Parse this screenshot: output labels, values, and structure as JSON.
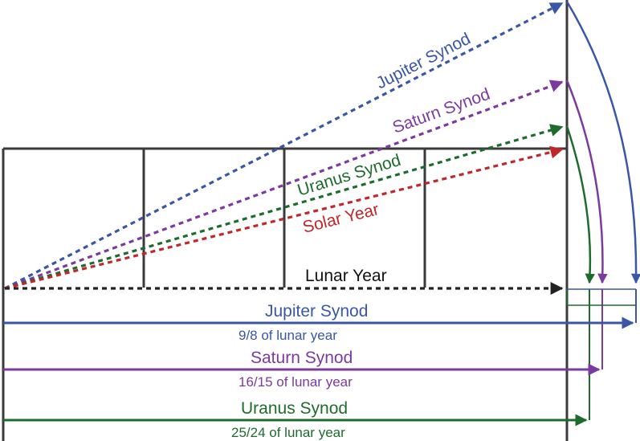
{
  "colors": {
    "frame": "#3a3a3a",
    "jupiter": "#3a56a6",
    "saturn": "#7b3a9e",
    "uranus": "#1e6b2e",
    "solar": "#c0282a",
    "lunar": "#222222"
  },
  "rays": {
    "jupiter_label": "Jupiter Synod",
    "saturn_label": "Saturn Synod",
    "uranus_label": "Uranus Synod",
    "solar_label": "Solar Year",
    "lunar_label": "Lunar Year"
  },
  "bars": [
    {
      "key": "jupiter",
      "label": "Jupiter Synod",
      "ratio": "9/8 of lunar year"
    },
    {
      "key": "saturn",
      "label": "Saturn Synod",
      "ratio": "16/15 of lunar year"
    },
    {
      "key": "uranus",
      "label": "Uranus Synod",
      "ratio": "25/24 of lunar year"
    }
  ]
}
